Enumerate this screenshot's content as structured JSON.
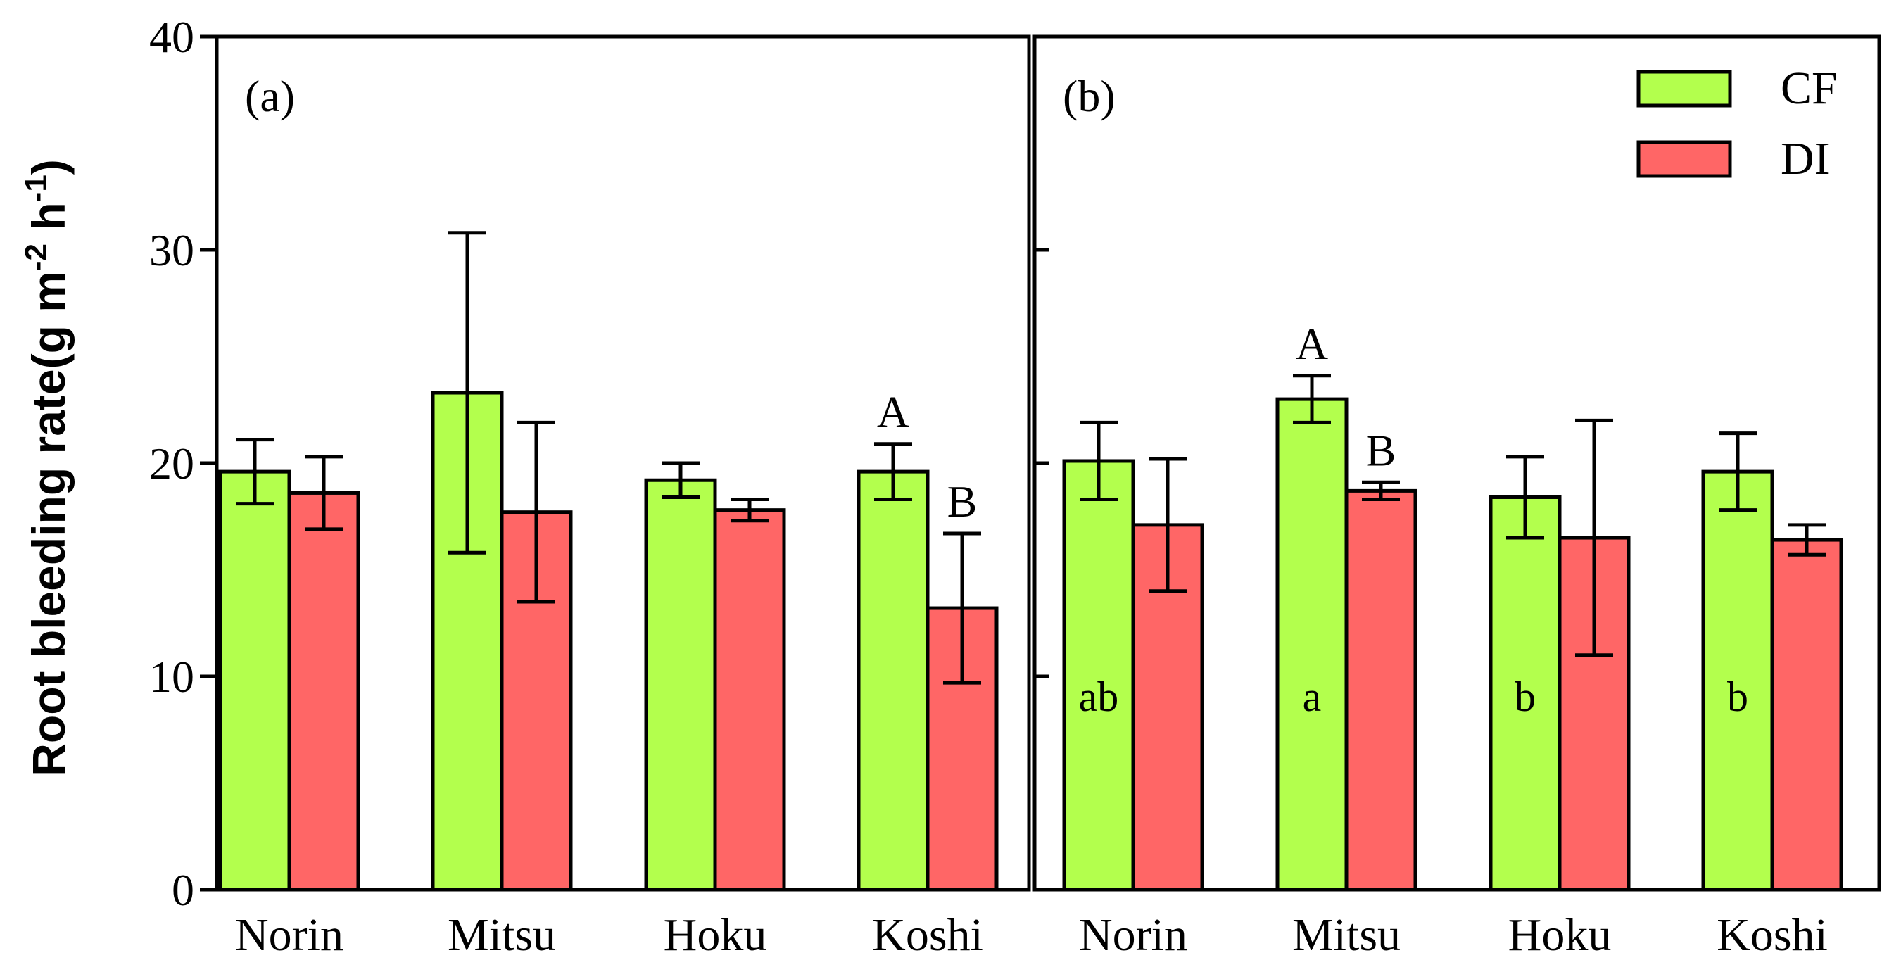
{
  "colors": {
    "CF": "#b3ff4d",
    "DI": "#ff6666",
    "axis": "#000000"
  },
  "ylabel_text": "Root bleeding rate(g m",
  "ylabel_sup1": "-2",
  "ylabel_mid": " h",
  "ylabel_sup2": "-1",
  "ylabel_end": ")",
  "legend": {
    "position": "top-right",
    "items": [
      "CF",
      "DI"
    ]
  },
  "chart_data": [
    {
      "type": "bar",
      "panel_label": "(a)",
      "categories": [
        "Norin",
        "Mitsu",
        "Hoku",
        "Koshi"
      ],
      "ylim": [
        0,
        40
      ],
      "yticks": [
        "0",
        "10",
        "20",
        "30",
        "40"
      ],
      "series": [
        {
          "name": "CF",
          "values": [
            19.6,
            23.3,
            19.2,
            19.6
          ],
          "errors": [
            1.5,
            7.5,
            0.8,
            1.3
          ],
          "top_letters": [
            "",
            "",
            "",
            "A"
          ],
          "inner_letters": [
            "",
            "",
            "",
            ""
          ]
        },
        {
          "name": "DI",
          "values": [
            18.6,
            17.7,
            17.8,
            13.2
          ],
          "errors": [
            1.7,
            4.2,
            0.5,
            3.5
          ],
          "top_letters": [
            "",
            "",
            "",
            "B"
          ],
          "inner_letters": [
            "",
            "",
            "",
            ""
          ]
        }
      ]
    },
    {
      "type": "bar",
      "panel_label": "(b)",
      "categories": [
        "Norin",
        "Mitsu",
        "Hoku",
        "Koshi"
      ],
      "ylim": [
        0,
        40
      ],
      "yticks": [],
      "series": [
        {
          "name": "CF",
          "values": [
            20.1,
            23.0,
            18.4,
            19.6
          ],
          "errors": [
            1.8,
            1.1,
            1.9,
            1.8
          ],
          "top_letters": [
            "",
            "A",
            "",
            ""
          ],
          "inner_letters": [
            "ab",
            "a",
            "b",
            "b"
          ]
        },
        {
          "name": "DI",
          "values": [
            17.1,
            18.7,
            16.5,
            16.4
          ],
          "errors": [
            3.1,
            0.4,
            5.5,
            0.7
          ],
          "top_letters": [
            "",
            "B",
            "",
            ""
          ],
          "inner_letters": [
            "",
            "",
            "",
            ""
          ]
        }
      ]
    }
  ]
}
